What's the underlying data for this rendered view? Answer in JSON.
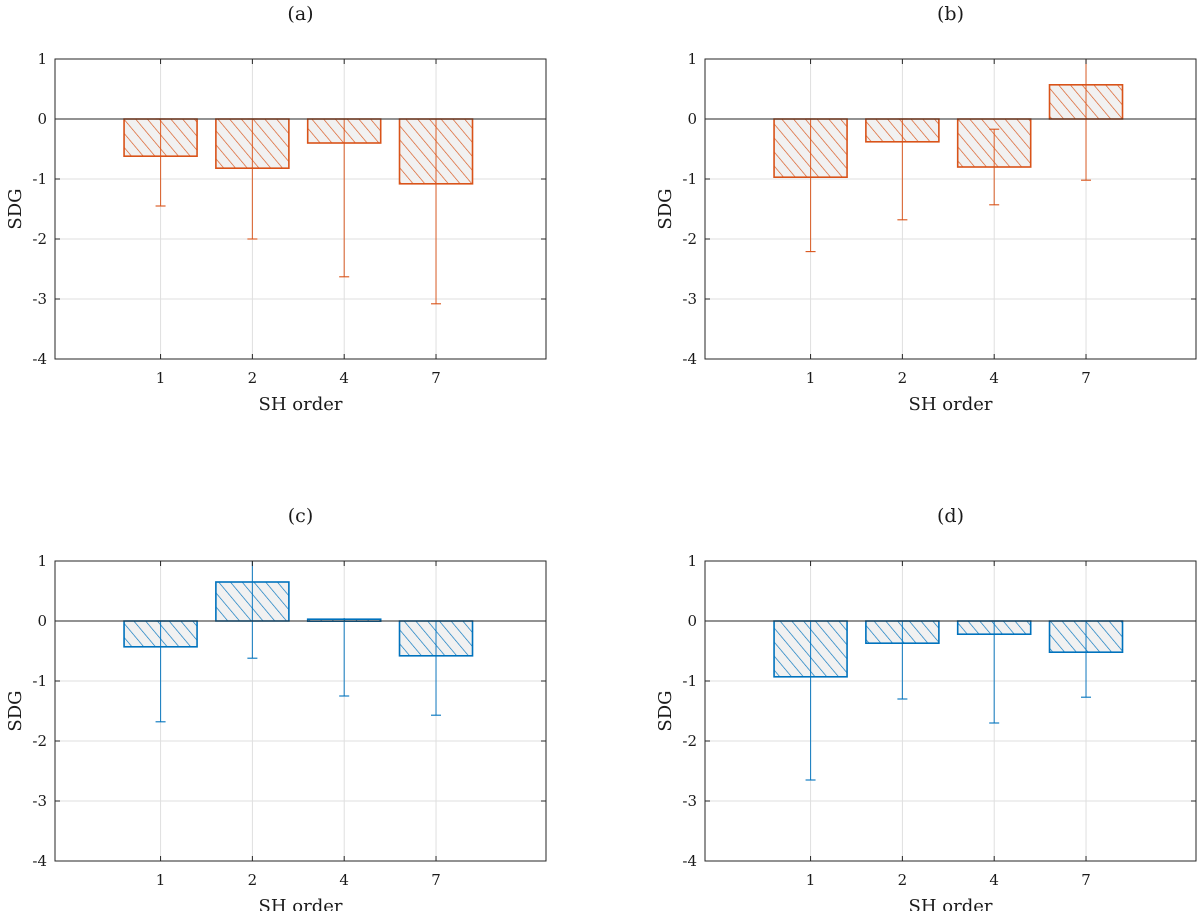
{
  "figure": {
    "colors": {
      "orange": "#D95319",
      "blue": "#0072BD",
      "axis": "#262626",
      "grid": "#dfdfdf"
    }
  },
  "chart_data": [
    {
      "type": "bar",
      "title": "(a)",
      "xlabel": "SH order",
      "ylabel": "SDG",
      "ylim": [
        -4,
        1
      ],
      "yticks": [
        1,
        0,
        -1,
        -2,
        -3,
        -4
      ],
      "grid": true,
      "color": "orange",
      "categories": [
        "1",
        "2",
        "4",
        "7"
      ],
      "values": [
        -0.62,
        -0.82,
        -0.4,
        -1.08
      ],
      "error_lower": [
        -1.45,
        -2.0,
        -2.63,
        -3.08
      ],
      "error_upper": [
        0,
        0,
        0,
        0
      ]
    },
    {
      "type": "bar",
      "title": "(b)",
      "xlabel": "SH order",
      "ylabel": "SDG",
      "ylim": [
        -4,
        1
      ],
      "yticks": [
        1,
        0,
        -1,
        -2,
        -3,
        -4
      ],
      "grid": true,
      "color": "orange",
      "categories": [
        "1",
        "2",
        "4",
        "7"
      ],
      "values": [
        -0.97,
        -0.38,
        -0.8,
        0.57
      ],
      "error_lower": [
        -2.21,
        -1.68,
        -1.43,
        -1.02
      ],
      "error_upper": [
        0,
        0,
        -0.17,
        1.0
      ]
    },
    {
      "type": "bar",
      "title": "(c)",
      "xlabel": "SH order",
      "ylabel": "SDG",
      "ylim": [
        -4,
        1
      ],
      "yticks": [
        1,
        0,
        -1,
        -2,
        -3,
        -4
      ],
      "grid": true,
      "color": "blue",
      "categories": [
        "1",
        "2",
        "4",
        "7"
      ],
      "values": [
        -0.43,
        0.65,
        0.03,
        -0.58
      ],
      "error_lower": [
        -1.68,
        -0.62,
        -1.25,
        -1.57
      ],
      "error_upper": [
        0,
        1.0,
        0.05,
        0
      ]
    },
    {
      "type": "bar",
      "title": "(d)",
      "xlabel": "SH order",
      "ylabel": "SDG",
      "ylim": [
        -4,
        1
      ],
      "yticks": [
        1,
        0,
        -1,
        -2,
        -3,
        -4
      ],
      "grid": true,
      "color": "blue",
      "categories": [
        "1",
        "2",
        "4",
        "7"
      ],
      "values": [
        -0.93,
        -0.37,
        -0.22,
        -0.52
      ],
      "error_lower": [
        -2.65,
        -1.3,
        -1.7,
        -1.27
      ],
      "error_upper": [
        0,
        0,
        0,
        0
      ]
    }
  ]
}
